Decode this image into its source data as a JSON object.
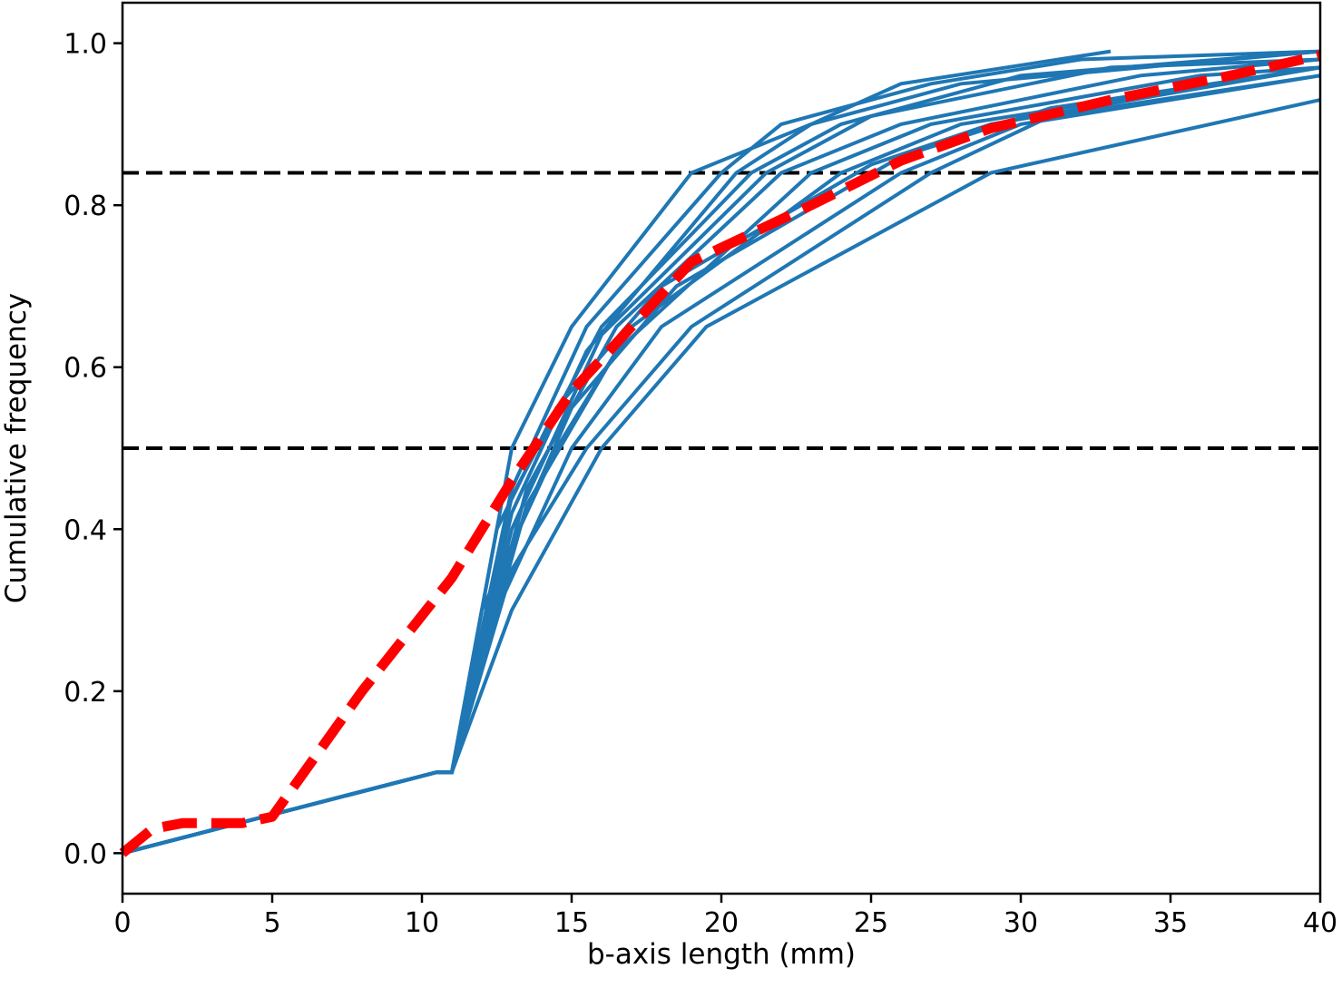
{
  "chart_data": {
    "type": "line",
    "title": "",
    "xlabel": "b-axis length (mm)",
    "ylabel": "Cumulative frequency",
    "xlim": [
      0,
      40
    ],
    "ylim": [
      -0.05,
      1.05
    ],
    "xticks": [
      0,
      5,
      10,
      15,
      20,
      25,
      30,
      35,
      40
    ],
    "yticks": [
      0.0,
      0.2,
      0.4,
      0.6,
      0.8,
      1.0
    ],
    "ytick_labels": [
      "0.0",
      "0.2",
      "0.4",
      "0.6",
      "0.8",
      "1.0"
    ],
    "grid": false,
    "legend": "none",
    "reference_lines": [
      0.84,
      0.5
    ],
    "series_color": "#1f77b4",
    "mean_color": "#ff0000",
    "reference_color": "#000000",
    "series": [
      {
        "values": [
          [
            0,
            0
          ],
          [
            10.5,
            0.1
          ],
          [
            11,
            0.1
          ],
          [
            13,
            0.5
          ],
          [
            15,
            0.65
          ],
          [
            19,
            0.84
          ],
          [
            23,
            0.9
          ],
          [
            26,
            0.95
          ],
          [
            33,
            0.99
          ]
        ]
      },
      {
        "values": [
          [
            0,
            0
          ],
          [
            10.5,
            0.1
          ],
          [
            11,
            0.1
          ],
          [
            13,
            0.45
          ],
          [
            15.5,
            0.65
          ],
          [
            20,
            0.84
          ],
          [
            22,
            0.9
          ],
          [
            27,
            0.95
          ],
          [
            32,
            0.98
          ],
          [
            40,
            0.99
          ]
        ]
      },
      {
        "values": [
          [
            0,
            0
          ],
          [
            10.5,
            0.1
          ],
          [
            11,
            0.1
          ],
          [
            13,
            0.42
          ],
          [
            15.5,
            0.62
          ],
          [
            20.5,
            0.84
          ],
          [
            23,
            0.9
          ],
          [
            28,
            0.95
          ],
          [
            40,
            0.99
          ]
        ]
      },
      {
        "values": [
          [
            0,
            0
          ],
          [
            10.5,
            0.1
          ],
          [
            11,
            0.1
          ],
          [
            13,
            0.44
          ],
          [
            16,
            0.65
          ],
          [
            21,
            0.84
          ],
          [
            24,
            0.9
          ],
          [
            30,
            0.96
          ],
          [
            40,
            0.99
          ]
        ]
      },
      {
        "values": [
          [
            0,
            0
          ],
          [
            10.5,
            0.1
          ],
          [
            11,
            0.1
          ],
          [
            13,
            0.4
          ],
          [
            16,
            0.64
          ],
          [
            21.5,
            0.84
          ],
          [
            25,
            0.91
          ],
          [
            33,
            0.97
          ],
          [
            40,
            0.98
          ]
        ]
      },
      {
        "values": [
          [
            0,
            0
          ],
          [
            10.5,
            0.1
          ],
          [
            11,
            0.1
          ],
          [
            13.5,
            0.45
          ],
          [
            16.5,
            0.65
          ],
          [
            22,
            0.84
          ],
          [
            26,
            0.9
          ],
          [
            34,
            0.96
          ],
          [
            40,
            0.98
          ]
        ]
      },
      {
        "values": [
          [
            0,
            0
          ],
          [
            10.5,
            0.1
          ],
          [
            11,
            0.1
          ],
          [
            13.5,
            0.43
          ],
          [
            16.5,
            0.62
          ],
          [
            23,
            0.84
          ],
          [
            27,
            0.9
          ],
          [
            36,
            0.96
          ],
          [
            40,
            0.97
          ]
        ]
      },
      {
        "values": [
          [
            0,
            0
          ],
          [
            10.5,
            0.1
          ],
          [
            11,
            0.1
          ],
          [
            12,
            0.3
          ],
          [
            14.5,
            0.5
          ],
          [
            17,
            0.65
          ],
          [
            24,
            0.84
          ],
          [
            28,
            0.9
          ],
          [
            40,
            0.97
          ]
        ]
      },
      {
        "values": [
          [
            0,
            0
          ],
          [
            10.5,
            0.1
          ],
          [
            11,
            0.1
          ],
          [
            12.5,
            0.3
          ],
          [
            15,
            0.5
          ],
          [
            18,
            0.65
          ],
          [
            26,
            0.84
          ],
          [
            30,
            0.9
          ],
          [
            40,
            0.96
          ]
        ]
      },
      {
        "values": [
          [
            0,
            0
          ],
          [
            10.5,
            0.1
          ],
          [
            11,
            0.1
          ],
          [
            13,
            0.35
          ],
          [
            15.5,
            0.5
          ],
          [
            19,
            0.65
          ],
          [
            27,
            0.84
          ],
          [
            31,
            0.91
          ],
          [
            40,
            0.96
          ]
        ]
      },
      {
        "values": [
          [
            0,
            0
          ],
          [
            10.5,
            0.1
          ],
          [
            11,
            0.1
          ],
          [
            13,
            0.3
          ],
          [
            16,
            0.5
          ],
          [
            19.5,
            0.65
          ],
          [
            29,
            0.84
          ],
          [
            40,
            0.93
          ]
        ]
      },
      {
        "values": [
          [
            0,
            0
          ],
          [
            10.5,
            0.1
          ],
          [
            11,
            0.1
          ],
          [
            12.5,
            0.4
          ],
          [
            14.5,
            0.55
          ],
          [
            18,
            0.7
          ],
          [
            25,
            0.85
          ],
          [
            29,
            0.9
          ],
          [
            40,
            0.97
          ]
        ]
      },
      {
        "values": [
          [
            0,
            0
          ],
          [
            10.5,
            0.1
          ],
          [
            11,
            0.1
          ],
          [
            13,
            0.38
          ],
          [
            15,
            0.55
          ],
          [
            18.5,
            0.7
          ],
          [
            26,
            0.86
          ],
          [
            31,
            0.92
          ],
          [
            40,
            0.97
          ]
        ]
      }
    ],
    "mean_series": {
      "values": [
        [
          0,
          0
        ],
        [
          1,
          0.03
        ],
        [
          2,
          0.037
        ],
        [
          4,
          0.037
        ],
        [
          5,
          0.045
        ],
        [
          8,
          0.2
        ],
        [
          11,
          0.34
        ],
        [
          13,
          0.46
        ],
        [
          15,
          0.57
        ],
        [
          17,
          0.65
        ],
        [
          19,
          0.73
        ],
        [
          23,
          0.8
        ],
        [
          26,
          0.855
        ],
        [
          29,
          0.895
        ],
        [
          33,
          0.93
        ],
        [
          37,
          0.96
        ],
        [
          40,
          0.985
        ]
      ]
    }
  }
}
